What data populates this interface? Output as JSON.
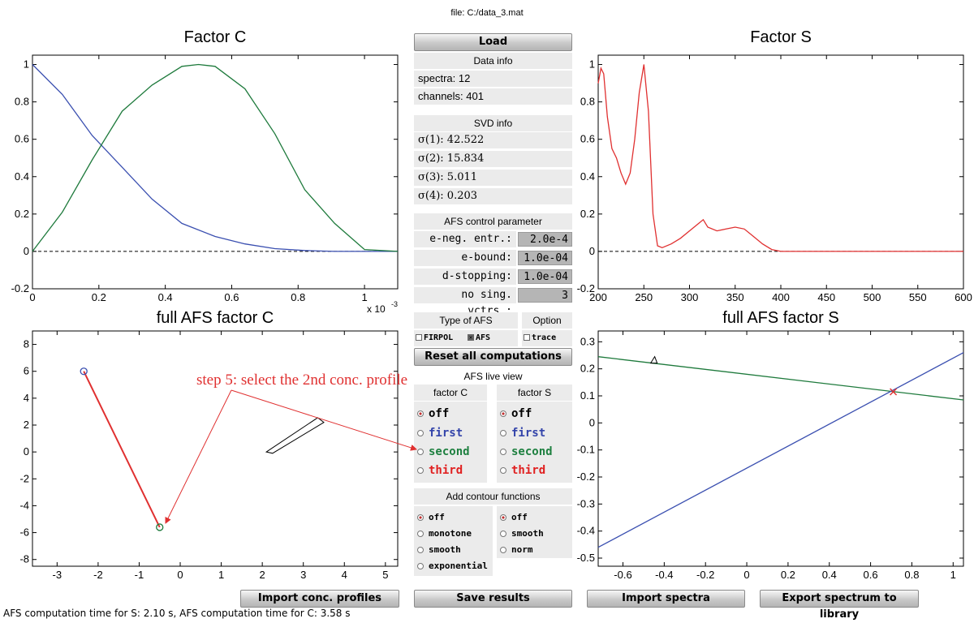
{
  "file_label": "file: C:/data_3.mat",
  "status_text": "AFS computation time for S: 2.10 s,  AFS computation time for C: 3.58 s",
  "load_button": "Load",
  "data_info": {
    "title": "Data info",
    "spectra": "spectra: 12",
    "channels": "channels: 401"
  },
  "svd_info": {
    "title": "SVD info",
    "values": [
      "σ(1): 42.522",
      "σ(2): 15.834",
      "σ(3): 5.011",
      "σ(4): 0.203"
    ]
  },
  "afs_control": {
    "title": "AFS control parameter",
    "params": [
      {
        "label": "e-neg. entr.:",
        "value": "2.0e-4"
      },
      {
        "label": "e-bound:",
        "value": "1.0e-04"
      },
      {
        "label": "d-stopping:",
        "value": "1.0e-04"
      },
      {
        "label": "no sing. vctrs.:",
        "value": "3"
      }
    ]
  },
  "type_of_afs": {
    "title": "Type of AFS",
    "firpol": "FIRPOL",
    "afs": "AFS",
    "firpol_checked": false,
    "afs_checked": true
  },
  "option": {
    "title": "Option",
    "trace": "trace",
    "trace_checked": false
  },
  "reset_button": "Reset all computations",
  "live_view": {
    "title": "AFS live view",
    "factor_c_label": "factor C",
    "factor_s_label": "factor S",
    "options": [
      "off",
      "first",
      "second",
      "third"
    ],
    "option_colors": [
      "#000000",
      "#3344aa",
      "#1e8040",
      "#e02020"
    ],
    "selected_c": 0,
    "selected_s": 0
  },
  "contour": {
    "title": "Add contour functions",
    "left_options": [
      "off",
      "monotone",
      "smooth",
      "exponential"
    ],
    "right_options": [
      "off",
      "smooth",
      "norm"
    ],
    "selected_left": 0,
    "selected_right": 0
  },
  "buttons": {
    "import_conc": "Import conc. profiles",
    "save_results": "Save results",
    "import_spectra": "Import spectra",
    "export_spectrum": "Export spectrum to library"
  },
  "annotation": "step 5: select the 2nd conc. profile",
  "colors": {
    "blue": "#3a4fb0",
    "green": "#1e7a3c",
    "red": "#e03030"
  },
  "chart_data": [
    {
      "id": "factor_c",
      "type": "line",
      "title": "Factor C",
      "xlabel": "",
      "ylabel": "",
      "x_multiplier_label": "x 10",
      "x_multiplier_exp": "-3",
      "xlim": [
        0,
        1.1
      ],
      "ylim": [
        -0.2,
        1.05
      ],
      "xticks": [
        0,
        0.2,
        0.4,
        0.6,
        0.8,
        1
      ],
      "yticks": [
        -0.2,
        0,
        0.2,
        0.4,
        0.6,
        0.8,
        1
      ],
      "zero_line": true,
      "series": [
        {
          "color": "#3a4fb0",
          "x": [
            0,
            0.09,
            0.18,
            0.27,
            0.36,
            0.45,
            0.55,
            0.64,
            0.73,
            0.82,
            0.91,
            1.0,
            1.1
          ],
          "y": [
            1.0,
            0.84,
            0.62,
            0.45,
            0.28,
            0.15,
            0.08,
            0.04,
            0.015,
            0.005,
            0.0,
            0.0,
            0.0
          ]
        },
        {
          "color": "#1e7a3c",
          "x": [
            0,
            0.09,
            0.18,
            0.27,
            0.36,
            0.45,
            0.5,
            0.55,
            0.64,
            0.73,
            0.82,
            0.91,
            1.0,
            1.1
          ],
          "y": [
            0.0,
            0.21,
            0.49,
            0.75,
            0.89,
            0.99,
            1.0,
            0.99,
            0.87,
            0.63,
            0.33,
            0.15,
            0.01,
            0.0
          ]
        }
      ]
    },
    {
      "id": "factor_s",
      "type": "line",
      "title": "Factor S",
      "xlabel": "",
      "ylabel": "",
      "xlim": [
        200,
        600
      ],
      "ylim": [
        -0.2,
        1.05
      ],
      "xticks": [
        200,
        250,
        300,
        350,
        400,
        450,
        500,
        550,
        600
      ],
      "yticks": [
        -0.2,
        0,
        0.2,
        0.4,
        0.6,
        0.8,
        1
      ],
      "zero_line": true,
      "series": [
        {
          "color": "#e03030",
          "x": [
            200,
            203,
            206,
            210,
            215,
            220,
            225,
            230,
            235,
            240,
            245,
            250,
            255,
            260,
            265,
            270,
            280,
            290,
            300,
            310,
            315,
            320,
            330,
            340,
            350,
            360,
            370,
            380,
            390,
            400,
            420,
            450,
            500,
            550,
            600
          ],
          "y": [
            0.9,
            0.98,
            0.95,
            0.72,
            0.55,
            0.5,
            0.42,
            0.36,
            0.42,
            0.6,
            0.85,
            1.0,
            0.75,
            0.2,
            0.03,
            0.02,
            0.04,
            0.07,
            0.11,
            0.15,
            0.17,
            0.13,
            0.11,
            0.12,
            0.13,
            0.12,
            0.08,
            0.04,
            0.01,
            0.0,
            0.0,
            0.0,
            0.0,
            0.0,
            0.0
          ]
        }
      ]
    },
    {
      "id": "full_afs_c",
      "type": "scatter",
      "title": "full AFS factor C",
      "xlabel": "",
      "ylabel": "",
      "xlim": [
        -3.6,
        5.3
      ],
      "ylim": [
        -8.5,
        9
      ],
      "xticks": [
        -3,
        -2,
        -1,
        0,
        1,
        2,
        3,
        4,
        5
      ],
      "yticks": [
        -8,
        -6,
        -4,
        -2,
        0,
        2,
        4,
        6,
        8
      ],
      "segment": {
        "x": [
          -2.35,
          -0.5
        ],
        "y": [
          6.0,
          -5.6
        ],
        "color": "#e03030"
      },
      "points": [
        {
          "x": -2.35,
          "y": 6.0,
          "color": "#3a4fb0"
        },
        {
          "x": -0.5,
          "y": -5.6,
          "color": "#1e7a3c"
        }
      ],
      "wedge": {
        "x": [
          2.1,
          3.35,
          3.5,
          2.25
        ],
        "y": [
          0.0,
          2.55,
          2.2,
          -0.1
        ]
      }
    },
    {
      "id": "full_afs_s",
      "type": "line",
      "title": "full AFS factor S",
      "xlabel": "",
      "ylabel": "",
      "xlim": [
        -0.72,
        1.05
      ],
      "ylim": [
        -0.53,
        0.34
      ],
      "xticks": [
        -0.6,
        -0.4,
        -0.2,
        0,
        0.2,
        0.4,
        0.6,
        0.8,
        1
      ],
      "yticks": [
        -0.5,
        -0.4,
        -0.3,
        -0.2,
        -0.1,
        0,
        0.1,
        0.2,
        0.3
      ],
      "lines": [
        {
          "x": [
            -0.72,
            1.05
          ],
          "y": [
            0.245,
            0.085
          ],
          "color": "#1e7a3c"
        },
        {
          "x": [
            -0.72,
            1.05
          ],
          "y": [
            -0.46,
            0.26
          ],
          "color": "#3a4fb0"
        }
      ],
      "marker": {
        "x": 0.71,
        "y": 0.115,
        "color": "#e03030"
      },
      "small_mark": {
        "x": -0.45,
        "y": 0.23
      }
    }
  ]
}
